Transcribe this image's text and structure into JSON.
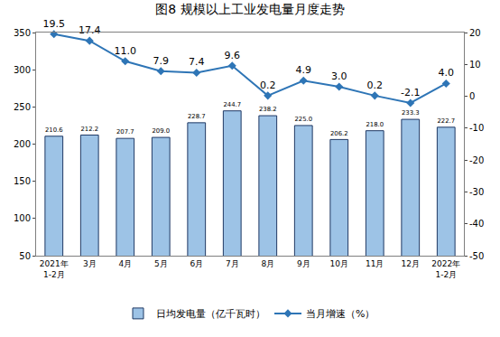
{
  "chart_data": {
    "type": "bar",
    "title": "图8 规模以上工业发电量月度走势",
    "categories": [
      "2021年\n1-2月",
      "3月",
      "4月",
      "5月",
      "6月",
      "7月",
      "8月",
      "9月",
      "10月",
      "11月",
      "12月",
      "2022年\n1-2月"
    ],
    "series": [
      {
        "name": "日均发电量（亿千瓦时）",
        "type": "bar",
        "color": "#9dc3e6",
        "values": [
          210.6,
          212.2,
          207.7,
          209.0,
          228.7,
          244.7,
          238.2,
          225.0,
          206.2,
          218.0,
          233.3,
          222.7
        ],
        "value_labels": [
          "210.6",
          "212.2",
          "207.7",
          "209.0",
          "228.7",
          "244.7",
          "238.2",
          "225.0",
          "206.2",
          "218.0",
          "233.3",
          "222.7"
        ]
      },
      {
        "name": "当月增速（%）",
        "type": "line",
        "axis": "y2",
        "color": "#2e75b6",
        "marker": "diamond",
        "line_style": "solid",
        "values": [
          19.5,
          17.4,
          11.0,
          7.9,
          7.4,
          9.6,
          0.2,
          4.9,
          3.0,
          0.2,
          -2.1,
          4.0
        ],
        "value_labels": [
          "19.5",
          "17.4",
          "11.0",
          "7.9",
          "7.4",
          "9.6",
          "0.2",
          "4.9",
          "3.0",
          "0.2",
          "-2.1",
          "4.0"
        ]
      }
    ],
    "ylim": [
      50,
      350
    ],
    "yticks": [
      50,
      100,
      150,
      200,
      250,
      300,
      350
    ],
    "y2lim": [
      -50,
      20
    ],
    "y2ticks": [
      -50,
      -40,
      -30,
      -20,
      -10,
      0,
      10,
      20
    ],
    "data_labels": true,
    "grid": false,
    "legend": "bottom"
  }
}
